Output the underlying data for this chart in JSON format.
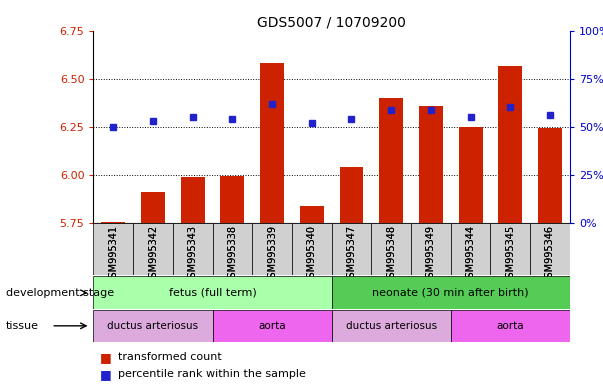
{
  "title": "GDS5007 / 10709200",
  "samples": [
    "GSM995341",
    "GSM995342",
    "GSM995343",
    "GSM995338",
    "GSM995339",
    "GSM995340",
    "GSM995347",
    "GSM995348",
    "GSM995349",
    "GSM995344",
    "GSM995345",
    "GSM995346"
  ],
  "bar_values": [
    5.755,
    5.91,
    5.99,
    5.995,
    6.58,
    5.835,
    6.04,
    6.4,
    6.36,
    6.25,
    6.565,
    6.245
  ],
  "dot_values": [
    6.25,
    6.28,
    6.3,
    6.29,
    6.37,
    6.27,
    6.29,
    6.335,
    6.335,
    6.3,
    6.355,
    6.31
  ],
  "bar_bottom": 5.75,
  "ylim": [
    5.75,
    6.75
  ],
  "yticks": [
    5.75,
    6.0,
    6.25,
    6.5,
    6.75
  ],
  "bar_color": "#cc2200",
  "dot_color": "#2222cc",
  "right_yticks": [
    0,
    25,
    50,
    75,
    100
  ],
  "right_ylabels": [
    "0%",
    "25%",
    "50%",
    "75%",
    "100%"
  ],
  "dev_stage_fetus_label": "fetus (full term)",
  "dev_stage_neonate_label": "neonate (30 min after birth)",
  "tissue_labels": [
    "ductus arteriosus",
    "aorta",
    "ductus arteriosus",
    "aorta"
  ],
  "fetus_color": "#aaffaa",
  "neonate_color": "#55cc55",
  "ductus_color": "#ddaadd",
  "aorta_color": "#ee66ee",
  "xlabel_left": "development stage",
  "xlabel_left2": "tissue",
  "legend_bar_label": "transformed count",
  "legend_dot_label": "percentile rank within the sample"
}
